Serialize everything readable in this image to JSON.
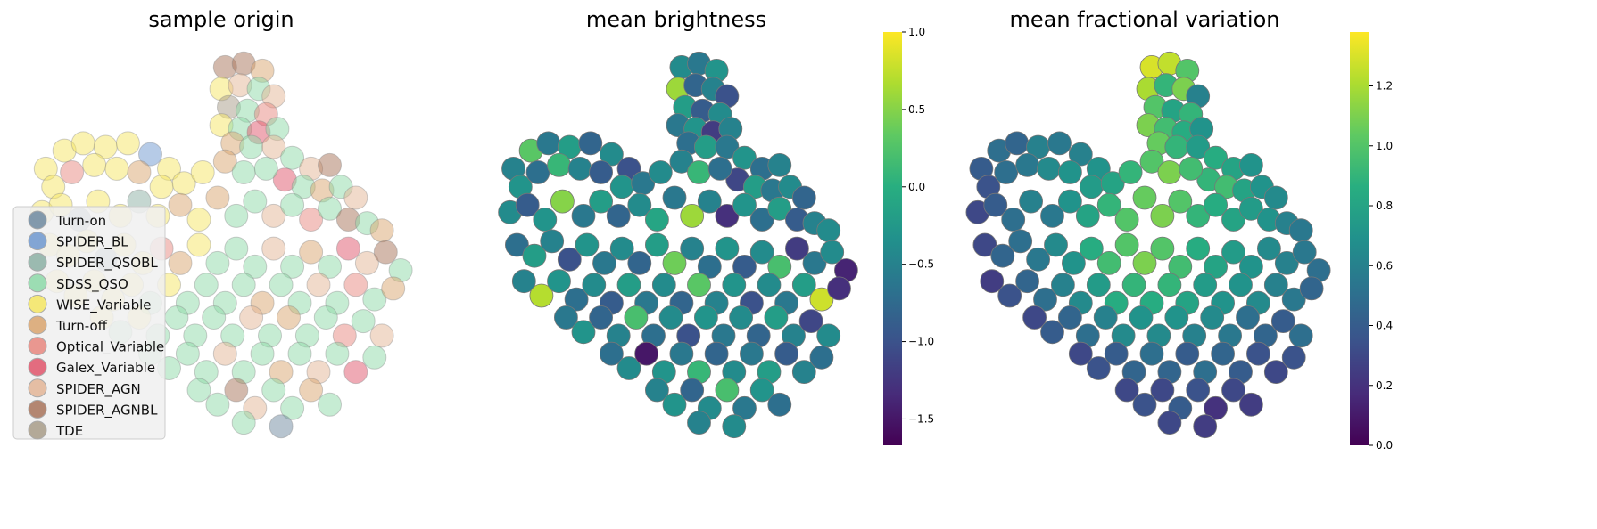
{
  "chart_data": [
    {
      "type": "scatter",
      "title": "sample origin",
      "color_by": "category",
      "marker_alpha": 0.5,
      "legend": {
        "placement": "lower-left"
      },
      "categories": [
        {
          "name": "Turn-on",
          "color": "#6f8aa0"
        },
        {
          "name": "SPIDER_BL",
          "color": "#6e98cf"
        },
        {
          "name": "SPIDER_QSOBL",
          "color": "#8cb0a4"
        },
        {
          "name": "SDSS_QSO",
          "color": "#8dd9a8"
        },
        {
          "name": "WISE_Variable",
          "color": "#f5e663"
        },
        {
          "name": "Turn-off",
          "color": "#d9a56f"
        },
        {
          "name": "Optical_Variable",
          "color": "#e8877f"
        },
        {
          "name": "Galex_Variable",
          "color": "#e0556b"
        },
        {
          "name": "SPIDER_AGN",
          "color": "#e3b596"
        },
        {
          "name": "SPIDER_AGNBL",
          "color": "#a8735a"
        },
        {
          "name": "TDE",
          "color": "#a89c88"
        }
      ],
      "axes_visible": false,
      "grid": false
    },
    {
      "type": "scatter",
      "title": "mean brightness",
      "color_by": "brightness",
      "colormap": "viridis",
      "colorbar": {
        "range": [
          -1.67,
          1.0
        ],
        "ticks": [
          1.0,
          0.5,
          0.0,
          -0.5,
          -1.0,
          -1.5
        ],
        "tick_labels": [
          "1.0",
          "0.5",
          "0.0",
          "−0.5",
          "−1.0",
          "−1.5"
        ]
      },
      "axes_visible": false,
      "grid": false
    },
    {
      "type": "scatter",
      "title": "mean fractional variation",
      "color_by": "fractional_variation",
      "colormap": "viridis",
      "colorbar": {
        "range": [
          0.0,
          1.38
        ],
        "ticks": [
          1.2,
          1.0,
          0.8,
          0.6,
          0.4,
          0.2,
          0.0
        ],
        "tick_labels": [
          "1.2",
          "1.0",
          "0.8",
          "0.6",
          "0.4",
          "0.2",
          "0.0"
        ]
      },
      "axes_visible": false,
      "grid": false
    }
  ],
  "points_columns": [
    "x",
    "y",
    "category_index",
    "brightness",
    "fractional_variation"
  ],
  "points": [
    [
      5.0,
      9.8,
      9,
      -0.4,
      1.3
    ],
    [
      5.5,
      9.9,
      9,
      -0.6,
      1.25
    ],
    [
      6.0,
      9.7,
      5,
      -0.3,
      1.0
    ],
    [
      4.9,
      9.2,
      4,
      0.6,
      1.2
    ],
    [
      5.4,
      9.3,
      8,
      -0.8,
      0.9
    ],
    [
      5.9,
      9.2,
      3,
      -0.5,
      1.1
    ],
    [
      6.3,
      9.0,
      8,
      -1.0,
      0.6
    ],
    [
      5.1,
      8.7,
      10,
      -0.2,
      1.0
    ],
    [
      5.6,
      8.6,
      3,
      -0.9,
      0.8
    ],
    [
      6.1,
      8.5,
      6,
      -0.4,
      0.9
    ],
    [
      4.9,
      8.2,
      4,
      -0.6,
      1.1
    ],
    [
      5.4,
      8.1,
      3,
      -0.3,
      0.95
    ],
    [
      5.9,
      8.0,
      7,
      -1.2,
      0.85
    ],
    [
      6.4,
      8.1,
      3,
      -0.5,
      0.7
    ],
    [
      5.2,
      7.7,
      5,
      -0.7,
      1.05
    ],
    [
      5.7,
      7.6,
      3,
      -0.2,
      0.9
    ],
    [
      6.3,
      7.6,
      8,
      -0.6,
      0.75
    ],
    [
      0.2,
      7.0,
      4,
      -0.5,
      0.4
    ],
    [
      0.7,
      7.5,
      4,
      0.3,
      0.5
    ],
    [
      1.2,
      7.7,
      4,
      -0.6,
      0.45
    ],
    [
      1.8,
      7.6,
      4,
      -0.2,
      0.6
    ],
    [
      2.4,
      7.7,
      4,
      -0.8,
      0.55
    ],
    [
      3.0,
      7.4,
      1,
      -0.4,
      0.6
    ],
    [
      3.5,
      7.0,
      4,
      -1.0,
      0.7
    ],
    [
      0.4,
      6.5,
      4,
      -0.3,
      0.35
    ],
    [
      0.9,
      6.9,
      6,
      -0.7,
      0.5
    ],
    [
      1.5,
      7.1,
      4,
      0.1,
      0.55
    ],
    [
      2.1,
      7.0,
      4,
      -0.5,
      0.65
    ],
    [
      2.7,
      6.9,
      5,
      -0.9,
      0.7
    ],
    [
      3.3,
      6.5,
      4,
      -0.3,
      0.75
    ],
    [
      3.9,
      6.6,
      4,
      -0.6,
      0.8
    ],
    [
      4.4,
      6.9,
      4,
      -0.4,
      0.9
    ],
    [
      6.8,
      7.3,
      3,
      -0.3,
      0.85
    ],
    [
      7.3,
      7.0,
      8,
      -0.7,
      0.8
    ],
    [
      7.8,
      7.1,
      9,
      -0.5,
      0.7
    ],
    [
      6.6,
      6.7,
      7,
      -1.1,
      0.9
    ],
    [
      7.1,
      6.5,
      3,
      -0.2,
      0.95
    ],
    [
      7.6,
      6.4,
      5,
      -0.6,
      0.8
    ],
    [
      8.1,
      6.5,
      3,
      -0.4,
      0.7
    ],
    [
      8.5,
      6.2,
      8,
      -0.8,
      0.65
    ],
    [
      5.0,
      7.2,
      5,
      -0.5,
      1.0
    ],
    [
      5.5,
      6.9,
      3,
      0.1,
      1.1
    ],
    [
      6.1,
      7.0,
      3,
      -0.7,
      0.95
    ],
    [
      0.1,
      5.8,
      4,
      -0.4,
      0.3
    ],
    [
      0.6,
      6.0,
      4,
      -0.9,
      0.4
    ],
    [
      1.1,
      5.6,
      0,
      -0.3,
      0.5
    ],
    [
      1.6,
      6.1,
      4,
      0.5,
      0.6
    ],
    [
      2.2,
      5.7,
      4,
      -0.6,
      0.55
    ],
    [
      2.7,
      6.1,
      2,
      -0.2,
      0.7
    ],
    [
      3.2,
      5.7,
      4,
      -0.8,
      0.8
    ],
    [
      3.8,
      6.0,
      5,
      -0.4,
      0.9
    ],
    [
      4.3,
      5.6,
      4,
      -0.1,
      1.0
    ],
    [
      4.8,
      6.2,
      5,
      -0.6,
      1.05
    ],
    [
      5.3,
      5.7,
      3,
      0.6,
      1.1
    ],
    [
      5.8,
      6.1,
      3,
      -0.5,
      1.0
    ],
    [
      6.3,
      5.7,
      8,
      -1.3,
      0.9
    ],
    [
      6.8,
      6.0,
      3,
      -0.3,
      0.85
    ],
    [
      7.3,
      5.6,
      6,
      -0.7,
      0.8
    ],
    [
      7.8,
      5.9,
      3,
      -0.2,
      0.75
    ],
    [
      8.3,
      5.6,
      9,
      -0.9,
      0.7
    ],
    [
      8.8,
      5.5,
      3,
      -0.5,
      0.6
    ],
    [
      9.2,
      5.3,
      5,
      -0.4,
      0.55
    ],
    [
      0.3,
      4.9,
      4,
      -0.7,
      0.3
    ],
    [
      0.8,
      4.6,
      4,
      -0.2,
      0.45
    ],
    [
      1.3,
      5.0,
      4,
      -0.5,
      0.5
    ],
    [
      1.8,
      4.5,
      0,
      -1.0,
      0.55
    ],
    [
      2.3,
      4.9,
      4,
      -0.3,
      0.65
    ],
    [
      2.8,
      4.4,
      4,
      -0.6,
      0.7
    ],
    [
      3.3,
      4.8,
      6,
      -0.4,
      0.85
    ],
    [
      3.8,
      4.4,
      5,
      -0.8,
      0.95
    ],
    [
      4.3,
      4.9,
      4,
      -0.2,
      1.0
    ],
    [
      4.8,
      4.4,
      3,
      0.4,
      1.1
    ],
    [
      5.3,
      4.8,
      3,
      -0.5,
      1.0
    ],
    [
      5.8,
      4.3,
      3,
      -0.7,
      0.95
    ],
    [
      6.3,
      4.8,
      8,
      -0.3,
      0.85
    ],
    [
      6.8,
      4.3,
      3,
      -0.9,
      0.8
    ],
    [
      7.3,
      4.7,
      5,
      -0.4,
      0.75
    ],
    [
      7.8,
      4.3,
      3,
      0.2,
      0.7
    ],
    [
      8.3,
      4.8,
      7,
      -1.2,
      0.65
    ],
    [
      8.8,
      4.4,
      8,
      -0.6,
      0.6
    ],
    [
      9.3,
      4.7,
      9,
      -0.4,
      0.55
    ],
    [
      9.7,
      4.2,
      3,
      -1.4,
      0.5
    ],
    [
      0.5,
      3.9,
      4,
      -0.5,
      0.25
    ],
    [
      1.0,
      3.5,
      4,
      0.7,
      0.35
    ],
    [
      1.5,
      3.9,
      4,
      -0.3,
      0.45
    ],
    [
      2.0,
      3.4,
      4,
      -0.7,
      0.5
    ],
    [
      2.5,
      3.8,
      4,
      -0.4,
      0.6
    ],
    [
      3.0,
      3.3,
      3,
      -0.9,
      0.65
    ],
    [
      3.5,
      3.8,
      4,
      -0.2,
      0.75
    ],
    [
      4.0,
      3.3,
      3,
      -0.6,
      0.85
    ],
    [
      4.5,
      3.8,
      3,
      -0.4,
      0.9
    ],
    [
      5.0,
      3.3,
      3,
      -0.8,
      0.85
    ],
    [
      5.5,
      3.8,
      3,
      0.3,
      0.9
    ],
    [
      6.0,
      3.3,
      5,
      -0.5,
      0.8
    ],
    [
      6.5,
      3.8,
      3,
      -0.3,
      0.75
    ],
    [
      7.0,
      3.3,
      3,
      -1.0,
      0.7
    ],
    [
      7.5,
      3.8,
      8,
      -0.4,
      0.7
    ],
    [
      8.0,
      3.3,
      3,
      -0.6,
      0.65
    ],
    [
      8.5,
      3.8,
      6,
      -0.2,
      0.6
    ],
    [
      9.0,
      3.4,
      3,
      0.8,
      0.55
    ],
    [
      9.5,
      3.7,
      5,
      -1.3,
      0.45
    ],
    [
      1.7,
      2.9,
      4,
      -0.6,
      0.3
    ],
    [
      2.2,
      2.5,
      3,
      -0.3,
      0.4
    ],
    [
      2.7,
      2.9,
      4,
      -0.8,
      0.45
    ],
    [
      3.2,
      2.4,
      3,
      -0.5,
      0.5
    ],
    [
      3.7,
      2.9,
      3,
      0.2,
      0.6
    ],
    [
      4.2,
      2.4,
      3,
      -0.7,
      0.65
    ],
    [
      4.7,
      2.9,
      3,
      -0.4,
      0.7
    ],
    [
      5.2,
      2.4,
      3,
      -1.0,
      0.65
    ],
    [
      5.7,
      2.9,
      8,
      -0.3,
      0.7
    ],
    [
      6.2,
      2.4,
      3,
      -0.6,
      0.6
    ],
    [
      6.7,
      2.9,
      5,
      -0.4,
      0.65
    ],
    [
      7.2,
      2.4,
      3,
      -0.8,
      0.55
    ],
    [
      7.7,
      2.9,
      3,
      -0.2,
      0.5
    ],
    [
      8.2,
      2.4,
      6,
      -0.5,
      0.45
    ],
    [
      8.7,
      2.8,
      3,
      -1.1,
      0.4
    ],
    [
      9.2,
      2.4,
      8,
      -0.4,
      0.5
    ],
    [
      3.0,
      1.9,
      3,
      -0.7,
      0.3
    ],
    [
      3.5,
      1.5,
      3,
      -0.4,
      0.35
    ],
    [
      4.0,
      1.9,
      3,
      -1.5,
      0.4
    ],
    [
      4.5,
      1.4,
      3,
      -0.3,
      0.45
    ],
    [
      5.0,
      1.9,
      8,
      -0.6,
      0.5
    ],
    [
      5.5,
      1.4,
      3,
      0.1,
      0.45
    ],
    [
      6.0,
      1.9,
      3,
      -0.8,
      0.4
    ],
    [
      6.5,
      1.4,
      5,
      -0.4,
      0.5
    ],
    [
      7.0,
      1.9,
      3,
      -0.6,
      0.45
    ],
    [
      7.5,
      1.4,
      8,
      -0.2,
      0.4
    ],
    [
      8.0,
      1.9,
      3,
      -0.9,
      0.35
    ],
    [
      8.5,
      1.4,
      7,
      -0.5,
      0.3
    ],
    [
      9.0,
      1.8,
      3,
      -0.7,
      0.35
    ],
    [
      4.3,
      0.9,
      3,
      -0.5,
      0.3
    ],
    [
      4.8,
      0.5,
      3,
      -0.3,
      0.35
    ],
    [
      5.3,
      0.9,
      9,
      -0.8,
      0.3
    ],
    [
      5.8,
      0.4,
      8,
      -0.4,
      0.4
    ],
    [
      6.3,
      0.9,
      3,
      0.2,
      0.35
    ],
    [
      6.8,
      0.4,
      3,
      -0.6,
      0.2
    ],
    [
      7.3,
      0.9,
      5,
      -0.3,
      0.3
    ],
    [
      7.8,
      0.5,
      3,
      -0.7,
      0.25
    ],
    [
      5.5,
      0.0,
      3,
      -0.5,
      0.3
    ],
    [
      6.5,
      -0.1,
      0,
      -0.4,
      0.25
    ]
  ]
}
